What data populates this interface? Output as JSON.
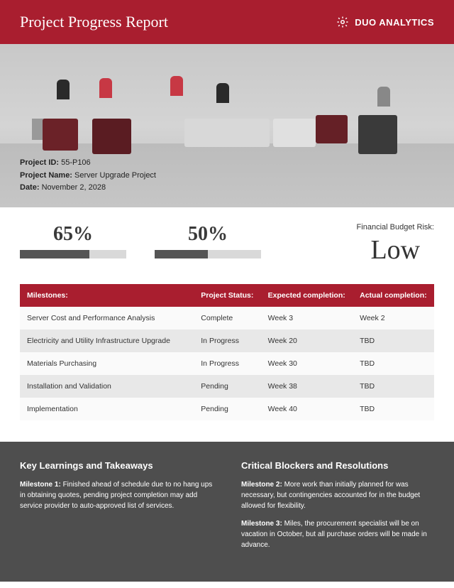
{
  "header": {
    "title": "Project Progress Report",
    "brand": "DUO ANALYTICS"
  },
  "colors": {
    "brand_red": "#a91e2f",
    "footer_gray": "#4e4e4e",
    "bar_bg": "#d9d9d9",
    "bar_fill": "#555555"
  },
  "meta": {
    "id_label": "Project ID:",
    "id_value": "55-P106",
    "name_label": "Project Name:",
    "name_value": "Server Upgrade Project",
    "date_label": "Date:",
    "date_value": "November 2, 2028"
  },
  "stats": {
    "pct1": {
      "display": "65%",
      "value": 65
    },
    "pct2": {
      "display": "50%",
      "value": 50
    },
    "risk_label": "Financial Budget Risk:",
    "risk_value": "Low"
  },
  "table": {
    "columns": [
      "Milestones:",
      "Project Status:",
      "Expected completion:",
      "Actual completion:"
    ],
    "rows": [
      [
        "Server Cost and Performance Analysis",
        "Complete",
        "Week 3",
        "Week 2"
      ],
      [
        "Electricity and Utility Infrastructure Upgrade",
        "In Progress",
        "Week 20",
        "TBD"
      ],
      [
        "Materials Purchasing",
        "In Progress",
        "Week 30",
        "TBD"
      ],
      [
        "Installation and Validation",
        "Pending",
        "Week 38",
        "TBD"
      ],
      [
        "Implementation",
        "Pending",
        "Week 40",
        "TBD"
      ]
    ]
  },
  "footer": {
    "left_title": "Key Learnings and Takeaways",
    "left_items": [
      {
        "label": "Milestone 1:",
        "text": "Finished ahead of schedule due to no hang ups in obtaining quotes, pending project completion may add service provider to auto-approved list of services."
      }
    ],
    "right_title": "Critical Blockers and Resolutions",
    "right_items": [
      {
        "label": "Milestone 2:",
        "text": "More work than initially planned for was necessary, but contingencies accounted for in the budget allowed for flexibility."
      },
      {
        "label": "Milestone 3:",
        "text": "Miles, the procurement specialist will be on vacation in October, but all purchase orders will be made in advance."
      }
    ]
  }
}
